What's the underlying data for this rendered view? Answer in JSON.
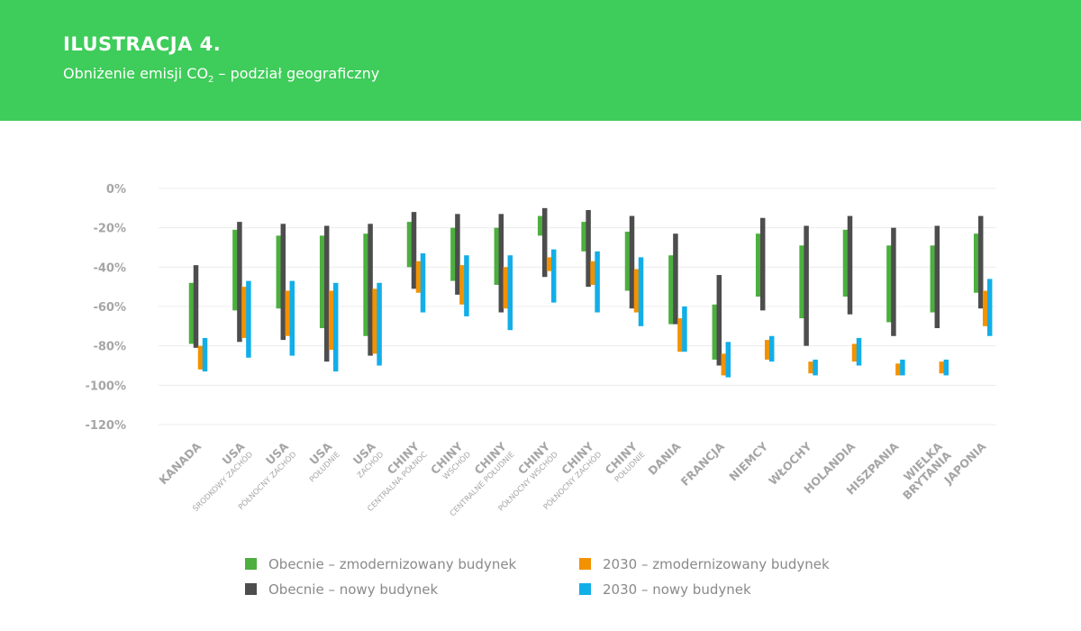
{
  "header": {
    "title": "ILUSTRACJA 4.",
    "subtitle_pre": "Obniżenie emisji CO",
    "subtitle_sub": "2",
    "subtitle_post": " – podział geograficzny"
  },
  "colors": {
    "header_bg": "#3ecc5a",
    "current_retrofit": "#4caf3f",
    "current_new": "#4d4d4d",
    "retrofit_2030": "#f39200",
    "new_2030": "#12aee8",
    "axis_text": "#a6a6a6",
    "grid": "#ececec"
  },
  "legend": [
    {
      "key": "current_retrofit",
      "label": "Obecnie – zmodernizowany budynek"
    },
    {
      "key": "retrofit_2030",
      "label": "2030 – zmodernizowany budynek"
    },
    {
      "key": "current_new",
      "label": "Obecnie – nowy budynek"
    },
    {
      "key": "new_2030",
      "label": "2030 – nowy budynek"
    }
  ],
  "chart_data": {
    "type": "bar",
    "subtype": "floating-range",
    "ylim": [
      -120,
      0
    ],
    "yticks": [
      "0%",
      "-20%",
      "-40%",
      "-60%",
      "-80%",
      "-100%",
      "-120%"
    ],
    "ytick_values": [
      0,
      -20,
      -40,
      -60,
      -80,
      -100,
      -120
    ],
    "grid": true,
    "legend_position": "bottom",
    "categories": [
      {
        "main": "KANADA",
        "sub": ""
      },
      {
        "main": "USA",
        "sub": "ŚRODKOWY ZACHÓD"
      },
      {
        "main": "USA",
        "sub": "PÓŁNOCNY ZACHÓD"
      },
      {
        "main": "USA",
        "sub": "POŁUDNIE"
      },
      {
        "main": "USA",
        "sub": "ZACHÓD"
      },
      {
        "main": "CHINY",
        "sub": "CENTRALNA PÓŁNOC"
      },
      {
        "main": "CHINY",
        "sub": "WSCHÓD"
      },
      {
        "main": "CHINY",
        "sub": "CENTRALNE POŁUDNIE"
      },
      {
        "main": "CHINY",
        "sub": "PÓŁNOCNY WSCHÓD"
      },
      {
        "main": "CHINY",
        "sub": "PÓŁNOCNY ZACHÓD"
      },
      {
        "main": "CHINY",
        "sub": "POŁUDNIE"
      },
      {
        "main": "DANIA",
        "sub": ""
      },
      {
        "main": "FRANCJA",
        "sub": ""
      },
      {
        "main": "NIEMCY",
        "sub": ""
      },
      {
        "main": "WŁOCHY",
        "sub": ""
      },
      {
        "main": "HOLANDIA",
        "sub": ""
      },
      {
        "main": "HISZPANIA",
        "sub": ""
      },
      {
        "main": "WIELKA",
        "sub": "BRYTANIA"
      },
      {
        "main": "JAPONIA",
        "sub": ""
      }
    ],
    "series": [
      {
        "name": "Obecnie – zmodernizowany budynek",
        "key": "current_retrofit",
        "ranges": [
          [
            -48,
            -79
          ],
          [
            -21,
            -62
          ],
          [
            -24,
            -61
          ],
          [
            -24,
            -71
          ],
          [
            -23,
            -75
          ],
          [
            -17,
            -40
          ],
          [
            -20,
            -47
          ],
          [
            -20,
            -49
          ],
          [
            -14,
            -24
          ],
          [
            -17,
            -32
          ],
          [
            -22,
            -52
          ],
          [
            -34,
            -69
          ],
          [
            -59,
            -87
          ],
          [
            -23,
            -55
          ],
          [
            -29,
            -66
          ],
          [
            -21,
            -55
          ],
          [
            -29,
            -68
          ],
          [
            -29,
            -63
          ],
          [
            -23,
            -53
          ]
        ]
      },
      {
        "name": "Obecnie – nowy budynek",
        "key": "current_new",
        "ranges": [
          [
            -39,
            -81
          ],
          [
            -17,
            -78
          ],
          [
            -18,
            -77
          ],
          [
            -19,
            -88
          ],
          [
            -18,
            -85
          ],
          [
            -12,
            -51
          ],
          [
            -13,
            -54
          ],
          [
            -13,
            -63
          ],
          [
            -10,
            -45
          ],
          [
            -11,
            -50
          ],
          [
            -14,
            -61
          ],
          [
            -23,
            -69
          ],
          [
            -44,
            -90
          ],
          [
            -15,
            -62
          ],
          [
            -19,
            -80
          ],
          [
            -14,
            -64
          ],
          [
            -20,
            -75
          ],
          [
            -19,
            -71
          ],
          [
            -14,
            -61
          ]
        ]
      },
      {
        "name": "2030 – zmodernizowany budynek",
        "key": "retrofit_2030",
        "ranges": [
          [
            -80,
            -92
          ],
          [
            -50,
            -76
          ],
          [
            -52,
            -75
          ],
          [
            -52,
            -82
          ],
          [
            -51,
            -84
          ],
          [
            -37,
            -53
          ],
          [
            -39,
            -59
          ],
          [
            -40,
            -61
          ],
          [
            -35,
            -42
          ],
          [
            -37,
            -49
          ],
          [
            -41,
            -63
          ],
          [
            -66,
            -83
          ],
          [
            -84,
            -95
          ],
          [
            -77,
            -87
          ],
          [
            -88,
            -94
          ],
          [
            -79,
            -88
          ],
          [
            -89,
            -95
          ],
          [
            -88,
            -94
          ],
          [
            -52,
            -70
          ]
        ]
      },
      {
        "name": "2030 – nowy budynek",
        "key": "new_2030",
        "ranges": [
          [
            -76,
            -93
          ],
          [
            -47,
            -86
          ],
          [
            -47,
            -85
          ],
          [
            -48,
            -93
          ],
          [
            -48,
            -90
          ],
          [
            -33,
            -63
          ],
          [
            -34,
            -65
          ],
          [
            -34,
            -72
          ],
          [
            -31,
            -58
          ],
          [
            -32,
            -63
          ],
          [
            -35,
            -70
          ],
          [
            -60,
            -83
          ],
          [
            -78,
            -96
          ],
          [
            -75,
            -88
          ],
          [
            -87,
            -95
          ],
          [
            -76,
            -90
          ],
          [
            -87,
            -95
          ],
          [
            -87,
            -95
          ],
          [
            -46,
            -75
          ]
        ]
      }
    ]
  }
}
